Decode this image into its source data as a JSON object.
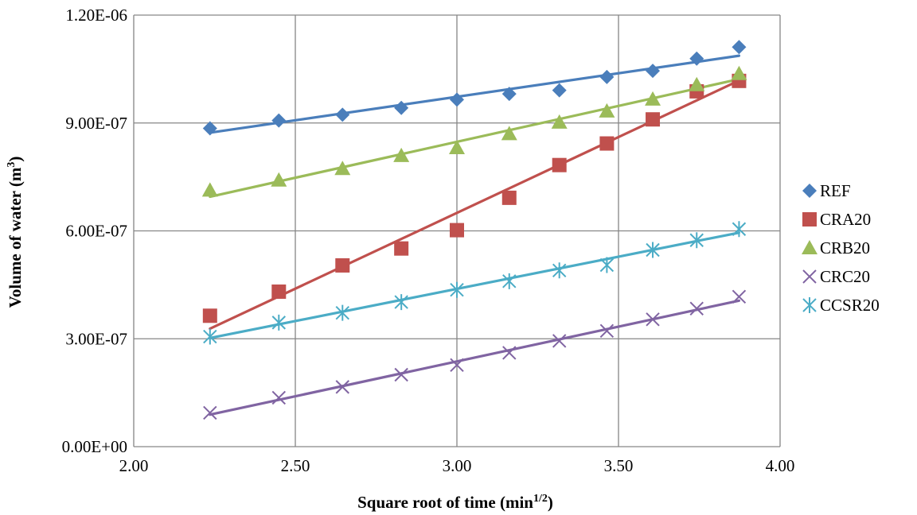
{
  "chart_data": {
    "type": "scatter",
    "xlabel": {
      "main": "Square root of time (min",
      "sup": "1/2",
      "tail": ")"
    },
    "ylabel": {
      "main": "Volume of water (m",
      "sup": "3",
      "tail": ")"
    },
    "xlim": [
      2.0,
      4.0
    ],
    "ylim": [
      0.0,
      1.2e-06
    ],
    "x_ticks": [
      2.0,
      2.5,
      3.0,
      3.5,
      4.0
    ],
    "x_tick_labels": [
      "2.00",
      "2.50",
      "3.00",
      "3.50",
      "4.00"
    ],
    "y_ticks": [
      0.0,
      3e-07,
      6e-07,
      9e-07,
      1.2e-06
    ],
    "y_tick_labels": [
      "0.00E+00",
      "3.00E-07",
      "6.00E-07",
      "9.00E-07",
      "1.20E-06"
    ],
    "grid": true,
    "legend_position": "right",
    "x": [
      2.236,
      2.449,
      2.646,
      2.828,
      3.0,
      3.162,
      3.317,
      3.464,
      3.606,
      3.742,
      3.873
    ],
    "series": [
      {
        "name": "REF",
        "marker": "diamond",
        "color": "#4a7ebb",
        "values": [
          8.85e-07,
          9.07e-07,
          9.23e-07,
          9.42e-07,
          9.65e-07,
          9.81e-07,
          9.91e-07,
          1.028e-06,
          1.045e-06,
          1.079e-06,
          1.111e-06
        ],
        "trend": [
          8.73e-07,
          1.087e-06
        ]
      },
      {
        "name": "CRA20",
        "marker": "square",
        "color": "#c0504d",
        "values": [
          3.64e-07,
          4.31e-07,
          5.04e-07,
          5.51e-07,
          6.02e-07,
          6.92e-07,
          7.83e-07,
          8.43e-07,
          9.1e-07,
          9.88e-07,
          1.017e-06
        ],
        "trend": [
          3.28e-07,
          1.018e-06
        ]
      },
      {
        "name": "CRB20",
        "marker": "triangle",
        "color": "#9bbb59",
        "values": [
          7.13e-07,
          7.41e-07,
          7.73e-07,
          8.09e-07,
          8.31e-07,
          8.7e-07,
          9.02e-07,
          9.33e-07,
          9.66e-07,
          1.006e-06,
          1.037e-06
        ],
        "trend": [
          6.95e-07,
          1.022e-06
        ]
      },
      {
        "name": "CRC20",
        "marker": "x",
        "color": "#8064a2",
        "values": [
          9.4e-08,
          1.36e-07,
          1.66e-07,
          2e-07,
          2.27e-07,
          2.61e-07,
          2.94e-07,
          3.22e-07,
          3.54e-07,
          3.84e-07,
          4.17e-07
        ],
        "trend": [
          8.9e-08,
          4.06e-07
        ]
      },
      {
        "name": "CCSR20",
        "marker": "star",
        "color": "#4bacc6",
        "values": [
          3.06e-07,
          3.45e-07,
          3.72e-07,
          4.02e-07,
          4.36e-07,
          4.6e-07,
          4.9e-07,
          5.05e-07,
          5.47e-07,
          5.74e-07,
          6.05e-07
        ],
        "trend": [
          3.02e-07,
          5.95e-07
        ]
      }
    ]
  }
}
